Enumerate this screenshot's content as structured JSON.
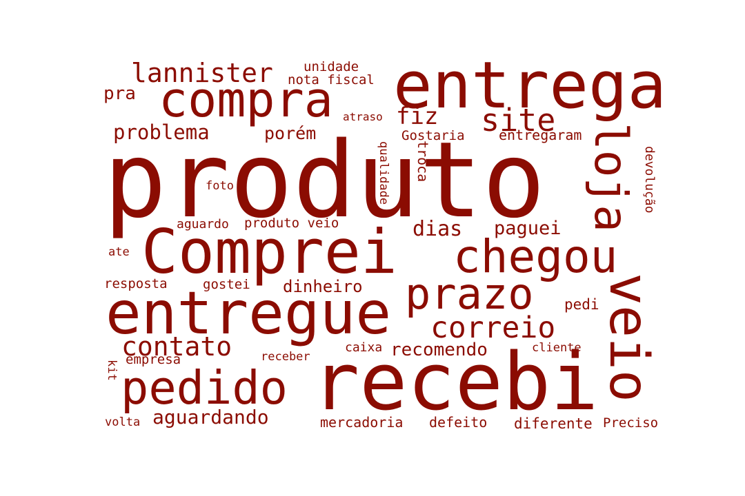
{
  "words": {
    "produto": "produto",
    "recebi": "recebi",
    "entrega": "entrega",
    "comprei": "Comprei",
    "entregue": "entregue",
    "chegou": "chegou",
    "compra": "compra",
    "pedido": "pedido",
    "prazo": "prazo",
    "veio": "veio",
    "loja": "loja",
    "site": "site",
    "fiz": "fiz",
    "lannister": "lannister",
    "correio": "correio",
    "contato": "contato",
    "problema": "problema",
    "porem": "porém",
    "dias": "dias",
    "paguei": "paguei",
    "dinheiro": "dinheiro",
    "aguardando": "aguardando",
    "recomendo": "recomendo",
    "produto_veio": "produto veio",
    "nota_fiscal": "nota fiscal",
    "unidade": "unidade",
    "pra": "pra",
    "atraso": "atraso",
    "gostaria": "Gostaria",
    "entregaram": "entregaram",
    "foto": "foto",
    "aguardo": "aguardo",
    "ate": "ate",
    "resposta": "resposta",
    "gostei": "gostei",
    "pedi": "pedi",
    "caixa": "caixa",
    "cliente": "cliente",
    "empresa": "empresa",
    "receber": "receber",
    "volta": "volta",
    "mercadoria": "mercadoria",
    "defeito": "defeito",
    "diferente": "diferente",
    "preciso": "Preciso",
    "qualidade": "qualidade",
    "troca": "troca",
    "devolucao": "devolução",
    "kit": "kit"
  },
  "colors": {
    "word": "#8b0c02",
    "background": "#ffffff"
  }
}
